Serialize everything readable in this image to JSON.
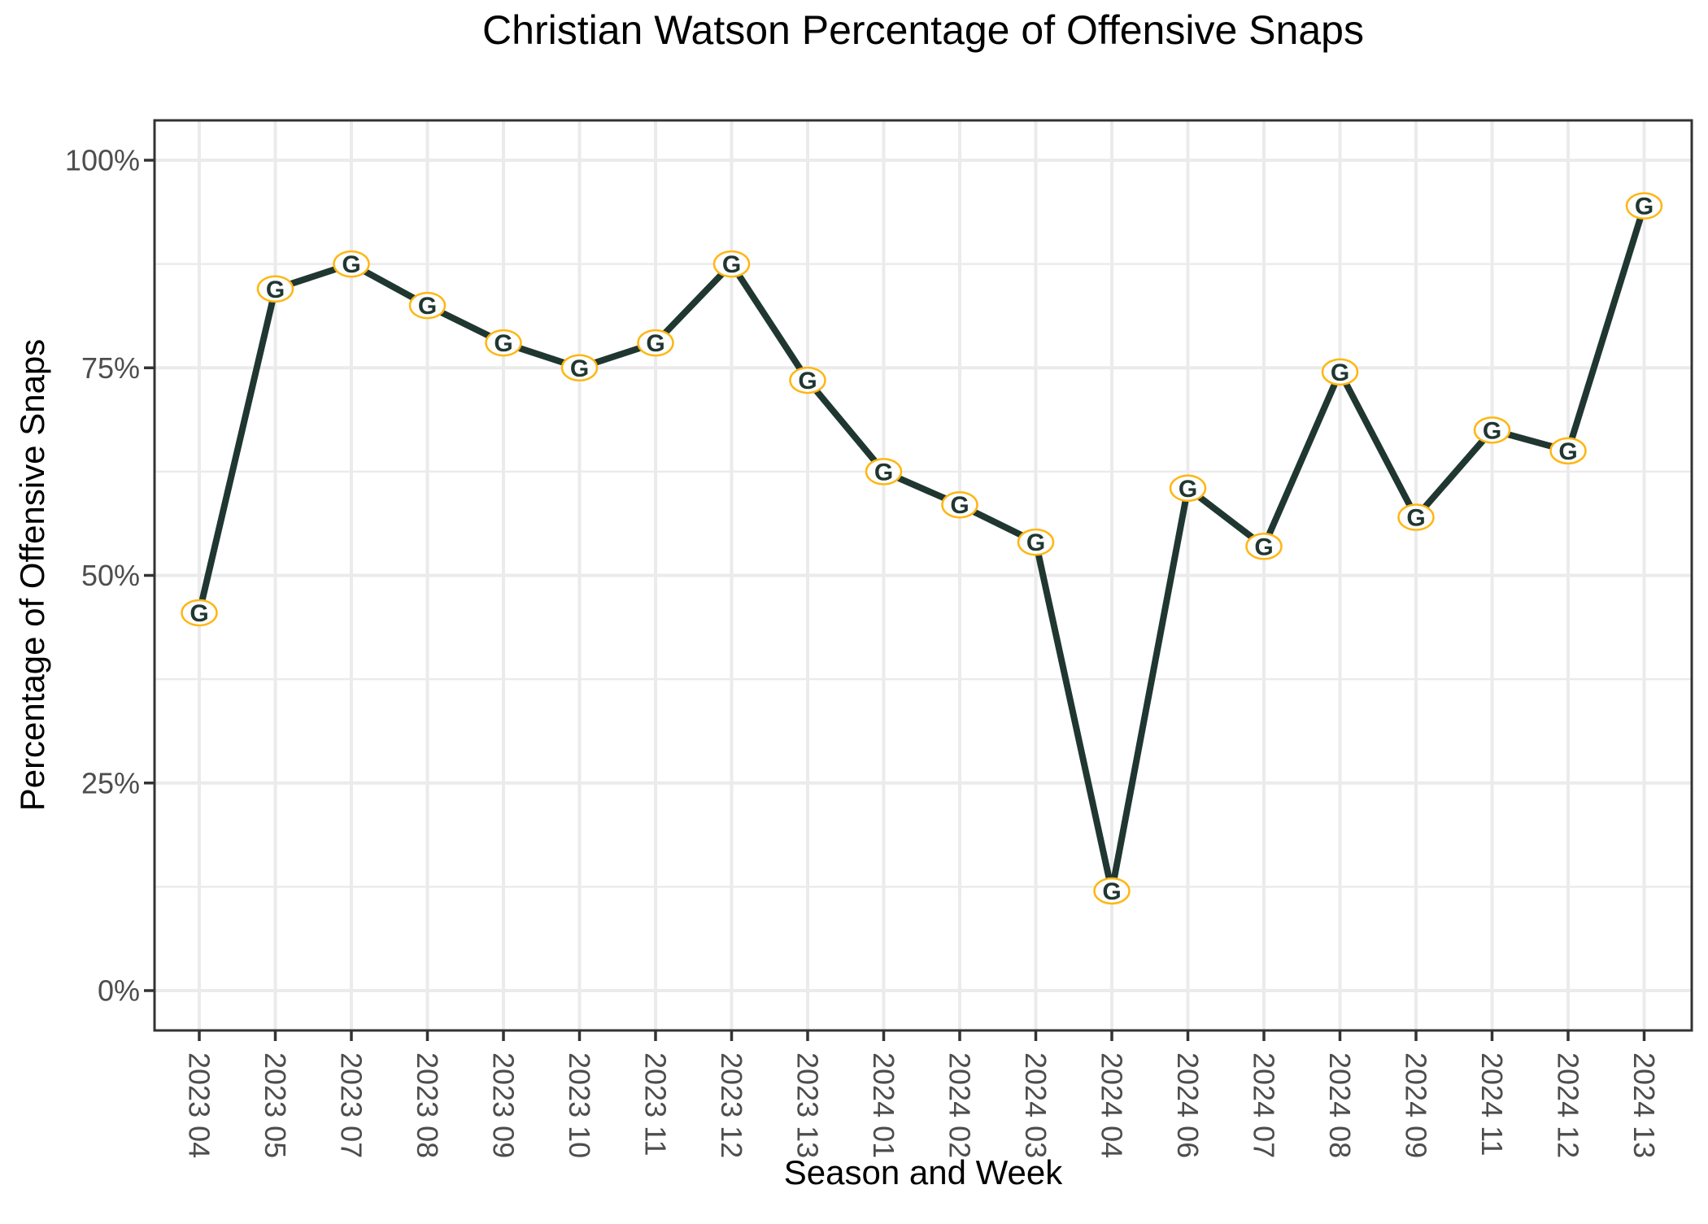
{
  "chart_data": {
    "type": "line",
    "title": "Christian Watson Percentage of Offensive Snaps",
    "xlabel": "Season and Week",
    "ylabel": "Percentage of Offensive Snaps",
    "categories": [
      "2023 04",
      "2023 05",
      "2023 07",
      "2023 08",
      "2023 09",
      "2023 10",
      "2023 11",
      "2023 12",
      "2023 13",
      "2024 01",
      "2024 02",
      "2024 03",
      "2024 04",
      "2024 06",
      "2024 07",
      "2024 08",
      "2024 09",
      "2024 11",
      "2024 12",
      "2024 13"
    ],
    "values": [
      45.5,
      84.5,
      87.5,
      82.5,
      78,
      75,
      78,
      87.5,
      73.5,
      62.5,
      58.5,
      54,
      12,
      60.5,
      53.5,
      74.5,
      57,
      67.5,
      65,
      94.5
    ],
    "ylim": [
      0,
      100
    ],
    "y_major_ticks": [
      0,
      25,
      50,
      75,
      100
    ],
    "y_tick_labels": [
      "0%",
      "25%",
      "50%",
      "75%",
      "100%"
    ],
    "y_minor_gridlines": [
      12.5,
      37.5,
      62.5,
      87.5
    ],
    "grid": "major-and-minor-horizontal, major-vertical-per-category",
    "legend": false,
    "marker": "packers-g-logo",
    "marker_letter": "G",
    "x_tick_label_rotation_deg": 90
  },
  "colors": {
    "line": "#203731",
    "marker_fill": "#ffffff",
    "marker_ring": "#FFB612",
    "marker_letter": "#203731",
    "gridline": "#ebebeb",
    "panel_border": "#333333",
    "tick_mark": "#333333",
    "tick_label": "#4d4d4d",
    "title_text": "#000000",
    "background": "#ffffff"
  }
}
